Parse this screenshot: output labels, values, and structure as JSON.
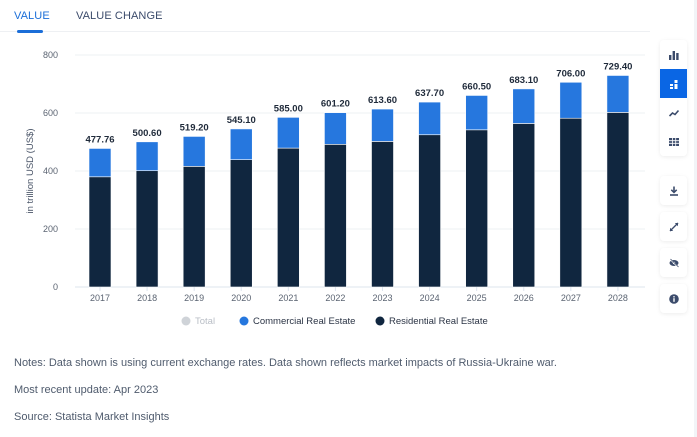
{
  "tabs": [
    {
      "label": "VALUE",
      "active": true
    },
    {
      "label": "VALUE CHANGE",
      "active": false
    }
  ],
  "colors": {
    "accent": "#1b6ed8",
    "commercial": "#2677de",
    "residential": "#10263f",
    "total_legend": "#cfd3d8",
    "gridline": "#eef0f3"
  },
  "chart_data": {
    "type": "bar",
    "stacked": true,
    "title": "",
    "xlabel": "",
    "ylabel": "in trillion USD (US$)",
    "ylim": [
      0,
      800
    ],
    "yticks": [
      0,
      200,
      400,
      600,
      800
    ],
    "grid": true,
    "legend_position": "bottom-center",
    "categories": [
      "2017",
      "2018",
      "2019",
      "2020",
      "2021",
      "2022",
      "2023",
      "2024",
      "2025",
      "2026",
      "2027",
      "2028"
    ],
    "totals": [
      477.76,
      500.6,
      519.2,
      545.1,
      585.0,
      601.2,
      613.6,
      637.7,
      660.5,
      683.1,
      706.0,
      729.4
    ],
    "total_labels": [
      "477.76",
      "500.60",
      "519.20",
      "545.10",
      "585.00",
      "601.20",
      "613.60",
      "637.70",
      "660.50",
      "683.10",
      "706.00",
      "729.40"
    ],
    "series": [
      {
        "name": "Residential Real Estate",
        "color": "#10263f",
        "values": [
          380,
          401,
          416,
          439,
          479,
          492,
          502,
          525,
          542,
          564,
          582,
          602
        ]
      },
      {
        "name": "Commercial Real Estate",
        "color": "#2677de",
        "values": [
          97.76,
          99.6,
          103.2,
          106.1,
          106.0,
          109.2,
          111.6,
          112.7,
          118.5,
          119.1,
          124.0,
          127.4
        ]
      }
    ],
    "legend": [
      {
        "label": "Total",
        "color": "#cfd3d8",
        "disabled": true
      },
      {
        "label": "Commercial Real Estate",
        "color": "#2677de",
        "disabled": false
      },
      {
        "label": "Residential Real Estate",
        "color": "#10263f",
        "disabled": false
      }
    ]
  },
  "sidebar": {
    "buttons": [
      {
        "icon": "bar-chart-icon",
        "active": false
      },
      {
        "icon": "stacked-bar-chart-icon",
        "active": true
      },
      {
        "icon": "line-chart-icon",
        "active": false
      },
      {
        "icon": "table-icon",
        "active": false
      }
    ],
    "actions": [
      {
        "icon": "download-icon"
      },
      {
        "icon": "fullscreen-icon"
      },
      {
        "icon": "hide-icon"
      },
      {
        "icon": "info-icon"
      }
    ]
  },
  "notes": {
    "notes_text": "Notes: Data shown is using current exchange rates. Data shown reflects market impacts of Russia-Ukraine war.",
    "update_text": "Most recent update: Apr 2023",
    "source_text": "Source: Statista Market Insights"
  }
}
